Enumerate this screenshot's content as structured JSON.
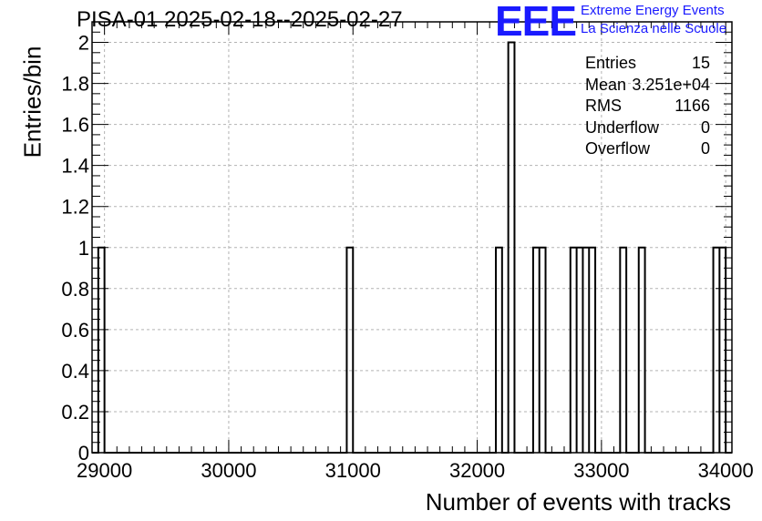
{
  "title": "PISA-01 2025-02-18--2025-02-27",
  "logo": {
    "mark": "EEE",
    "line1": "Extreme Energy Events",
    "line2": "La Scienza nelle Scuole",
    "color": "#1a1aff"
  },
  "stats": [
    {
      "name": "Entries",
      "value": "15"
    },
    {
      "name": "Mean",
      "value": "3.251e+04"
    },
    {
      "name": "RMS",
      "value": "1166"
    },
    {
      "name": "Underflow",
      "value": "0"
    },
    {
      "name": "Overflow",
      "value": "0"
    }
  ],
  "chart_data": {
    "type": "bar",
    "histogram": true,
    "title": "PISA-01 2025-02-18--2025-02-27",
    "xlabel": "Number of events with tracks",
    "ylabel": "Entries/bin",
    "xlim": [
      28900,
      34050
    ],
    "ylim": [
      0,
      2.1
    ],
    "bin_width": 50,
    "grid": true,
    "x_ticks": [
      29000,
      30000,
      31000,
      32000,
      33000,
      34000
    ],
    "y_ticks": [
      0,
      0.2,
      0.4,
      0.6,
      0.8,
      1,
      1.2,
      1.4,
      1.6,
      1.8,
      2
    ],
    "bins": [
      {
        "x0": 28950,
        "x1": 29000,
        "count": 1
      },
      {
        "x0": 30950,
        "x1": 31000,
        "count": 1
      },
      {
        "x0": 32150,
        "x1": 32200,
        "count": 1
      },
      {
        "x0": 32250,
        "x1": 32300,
        "count": 2
      },
      {
        "x0": 32450,
        "x1": 32500,
        "count": 1
      },
      {
        "x0": 32500,
        "x1": 32550,
        "count": 1
      },
      {
        "x0": 32750,
        "x1": 32800,
        "count": 1
      },
      {
        "x0": 32800,
        "x1": 32850,
        "count": 1
      },
      {
        "x0": 32850,
        "x1": 32900,
        "count": 1
      },
      {
        "x0": 32900,
        "x1": 32950,
        "count": 1
      },
      {
        "x0": 33150,
        "x1": 33200,
        "count": 1
      },
      {
        "x0": 33300,
        "x1": 33350,
        "count": 1
      },
      {
        "x0": 33900,
        "x1": 33950,
        "count": 1
      },
      {
        "x0": 33950,
        "x1": 34000,
        "count": 1
      }
    ],
    "line_color": "#000000",
    "grid_color": "#b3b3b3"
  }
}
